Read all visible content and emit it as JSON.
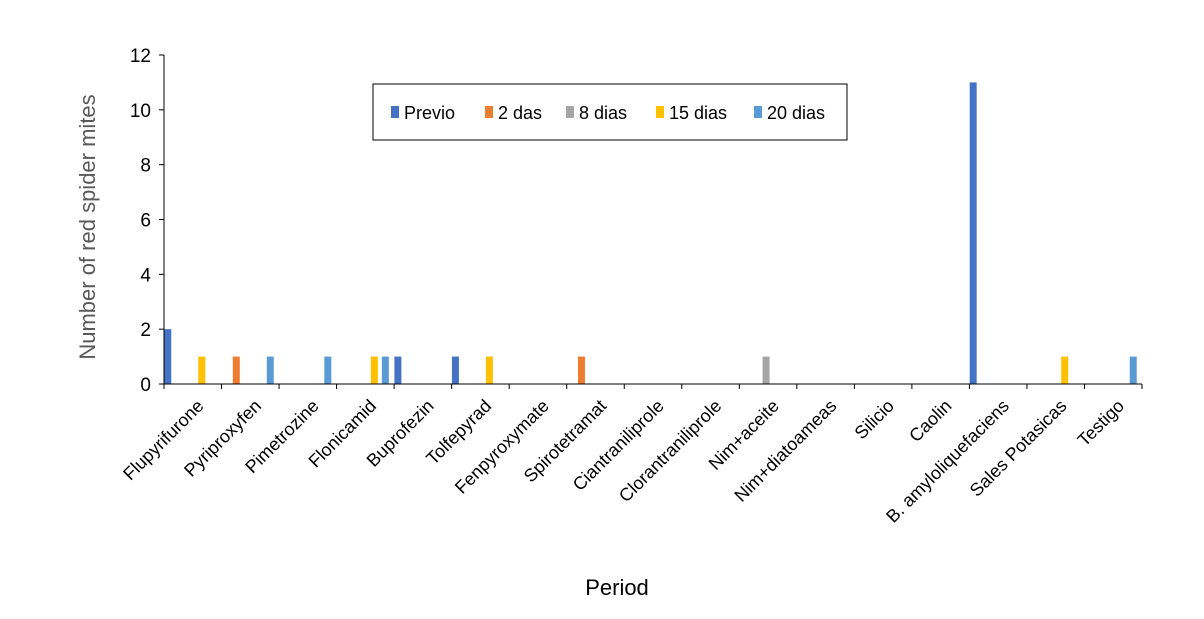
{
  "chart_data": {
    "type": "bar",
    "title": "",
    "xlabel": "Period",
    "ylabel": "Number of red spider mites",
    "ylim": [
      0,
      12
    ],
    "yticks": [
      0,
      2,
      4,
      6,
      8,
      10,
      12
    ],
    "grid": false,
    "legend_position": "top-center",
    "categories": [
      "Flupyrifurone",
      "Pyriproxyfen",
      "Pimetrozine",
      "Flonicamid",
      "Buprofezin",
      "Tolfepyrad",
      "Fenpyroxymate",
      "Spirotetramat",
      "Ciantraniliprole",
      "Clorantraniliprole",
      "Nim+aceite",
      "Nim+diatoameas",
      "Silicio",
      "Caolin",
      "B. amyloliquefaciens",
      "Sales Potasicas",
      "Testigo"
    ],
    "series": [
      {
        "name": "Previo",
        "color": "#4472C4",
        "values": [
          2,
          0,
          0,
          0,
          1,
          1,
          0,
          0,
          0,
          0,
          0,
          0,
          0,
          0,
          11,
          0,
          0
        ]
      },
      {
        "name": "2 das",
        "color": "#ED7D31",
        "values": [
          0,
          1,
          0,
          0,
          0,
          0,
          0,
          1,
          0,
          0,
          0,
          0,
          0,
          0,
          0,
          0,
          0
        ]
      },
      {
        "name": "8 dias",
        "color": "#A5A5A5",
        "values": [
          0,
          0,
          0,
          0,
          0,
          0,
          0,
          0,
          0,
          0,
          1,
          0,
          0,
          0,
          0,
          0,
          0
        ]
      },
      {
        "name": "15 dias",
        "color": "#FFC000",
        "values": [
          1,
          0,
          0,
          1,
          0,
          1,
          0,
          0,
          0,
          0,
          0,
          0,
          0,
          0,
          0,
          1,
          0
        ]
      },
      {
        "name": "20 dias",
        "color": "#5B9BD5",
        "values": [
          0,
          1,
          1,
          1,
          0,
          0,
          0,
          0,
          0,
          0,
          0,
          0,
          0,
          0,
          0,
          0,
          1
        ]
      }
    ]
  }
}
